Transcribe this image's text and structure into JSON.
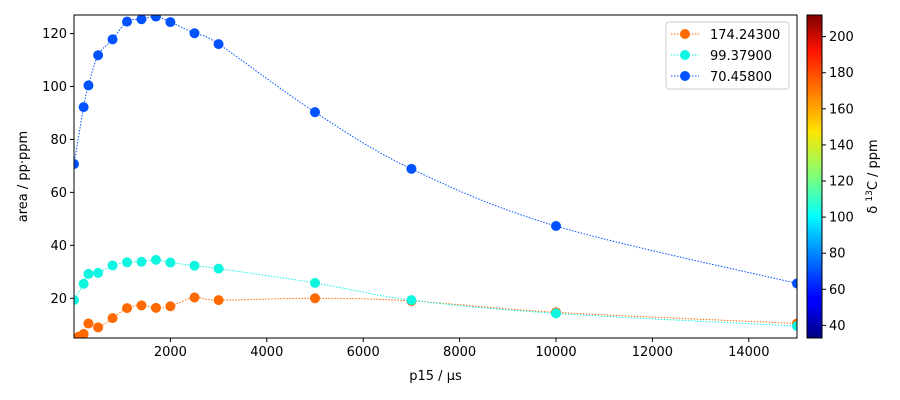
{
  "chart_data": {
    "type": "scatter",
    "xlabel": "p15 / µs",
    "ylabel": "area / pp·ppm",
    "xlim": [
      0,
      15000
    ],
    "ylim": [
      5,
      127
    ],
    "xticks": [
      2000,
      4000,
      6000,
      8000,
      10000,
      12000,
      14000
    ],
    "yticks": [
      20,
      40,
      60,
      80,
      100,
      120
    ],
    "x": [
      0,
      100,
      200,
      300,
      500,
      800,
      1100,
      1400,
      1700,
      2000,
      2500,
      3000,
      5000,
      7000,
      10000,
      15000
    ],
    "grid": false,
    "legend_position": "top-right",
    "series": [
      {
        "name": "174.24300",
        "color": "#ff6a00",
        "values": [
          null,
          5.5,
          6.5,
          10.5,
          9.0,
          12.5,
          16.3,
          17.3,
          16.4,
          17.0,
          20.3,
          19.3,
          20.0,
          19.0,
          14.7,
          10.5
        ]
      },
      {
        "name": "99.37900",
        "color": "#10f5e0",
        "values": [
          19.3,
          null,
          25.5,
          29.2,
          29.6,
          32.4,
          33.6,
          33.8,
          34.5,
          33.5,
          32.3,
          31.2,
          25.8,
          19.3,
          14.3,
          9.5
        ]
      },
      {
        "name": "70.45800",
        "color": "#0052ff",
        "values": [
          70.7,
          null,
          92.2,
          100.4,
          111.8,
          117.8,
          124.5,
          125.4,
          126.4,
          124.3,
          120.1,
          116.0,
          90.3,
          68.9,
          47.3,
          25.6
        ]
      }
    ],
    "colorbar": {
      "label": "δ ¹³C / ppm",
      "label_prefix": "δ ",
      "label_sup": "13",
      "label_suffix": "C / ppm",
      "range": [
        33,
        212
      ],
      "ticks": [
        40,
        60,
        80,
        100,
        120,
        140,
        160,
        180,
        200
      ],
      "colormap": "jet"
    }
  }
}
